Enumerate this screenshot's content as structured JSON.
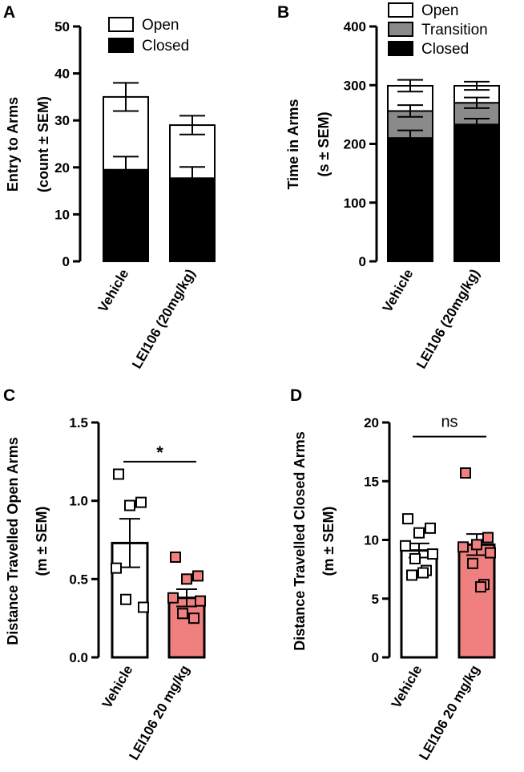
{
  "chart_data": [
    {
      "panel": "A",
      "type": "bar",
      "stacked": true,
      "ylabel_lines": [
        "Entry to Arms",
        "(count ± SEM)"
      ],
      "ylim": [
        0,
        50
      ],
      "yticks": [
        0,
        10,
        20,
        30,
        40,
        50
      ],
      "categories": [
        "Vehicle",
        "LEI106 (20mg/kg)"
      ],
      "series": [
        {
          "name": "Closed",
          "color": "#000000",
          "values": [
            19.5,
            17.7
          ],
          "sem": [
            2.8,
            2.4
          ]
        },
        {
          "name": "Open",
          "color": "#ffffff",
          "values": [
            15.5,
            11.3
          ],
          "sem": [
            3.0,
            2.0
          ]
        }
      ],
      "legend_order": [
        "Open",
        "Closed"
      ],
      "legend_position": "top-right"
    },
    {
      "panel": "B",
      "type": "bar",
      "stacked": true,
      "ylabel_lines": [
        "Time in Arms",
        "(s ± SEM)"
      ],
      "ylim": [
        0,
        400
      ],
      "yticks": [
        0,
        100,
        200,
        300,
        400
      ],
      "categories": [
        "Vehicle",
        "LEI106 (20mg/kg)"
      ],
      "series": [
        {
          "name": "Closed",
          "color": "#000000",
          "values": [
            210,
            233
          ],
          "sem": [
            13,
            10
          ]
        },
        {
          "name": "Transition",
          "color": "#8a8a8a",
          "values": [
            46,
            37
          ],
          "sem": [
            10,
            9
          ]
        },
        {
          "name": "Open",
          "color": "#ffffff",
          "values": [
            43,
            29
          ],
          "sem": [
            10,
            7
          ]
        }
      ],
      "legend_order": [
        "Open",
        "Transition",
        "Closed"
      ],
      "legend_position": "top"
    },
    {
      "panel": "C",
      "type": "bar",
      "ylabel_lines": [
        "Distance Travelled Open Arms",
        "(m ± SEM)"
      ],
      "ylim": [
        0,
        1.5
      ],
      "yticks": [
        0.0,
        0.5,
        1.0,
        1.5
      ],
      "ytick_labels": [
        "0.0",
        "0.5",
        "1.0",
        "1.5"
      ],
      "categories": [
        "Vehicle",
        "LEI106 20 mg/kg"
      ],
      "values": [
        0.73,
        0.38
      ],
      "sem": [
        0.155,
        0.055
      ],
      "bar_colors": [
        "#ffffff",
        "#f08080"
      ],
      "points": [
        [
          1.17,
          0.99,
          0.97,
          0.57,
          0.32,
          0.37
        ],
        [
          0.64,
          0.52,
          0.5,
          0.38,
          0.36,
          0.28,
          0.25
        ]
      ],
      "significance": "*"
    },
    {
      "panel": "D",
      "type": "bar",
      "ylabel_lines": [
        "Distance Travelled Closed  Arms",
        "(m ± SEM)"
      ],
      "ylim": [
        0,
        20
      ],
      "yticks": [
        0,
        5,
        10,
        15,
        20
      ],
      "categories": [
        "Vehicle",
        "LEI106 20 mg/kg"
      ],
      "values": [
        9.1,
        9.6
      ],
      "sem": [
        0.6,
        0.9
      ],
      "bar_colors": [
        "#ffffff",
        "#f08080"
      ],
      "points": [
        [
          11.8,
          11.0,
          10.6,
          9.5,
          8.8,
          8.4,
          7.4,
          7.2,
          7.0
        ],
        [
          15.7,
          10.2,
          9.6,
          9.4,
          8.9,
          8.0,
          6.2,
          6.0
        ]
      ],
      "significance": "ns"
    }
  ]
}
